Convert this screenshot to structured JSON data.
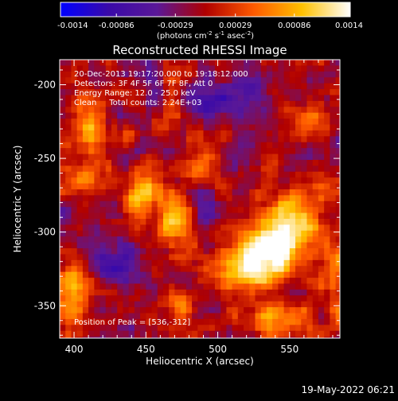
{
  "chart_data": {
    "type": "heatmap",
    "title": "Reconstructed RHESSI Image",
    "xlabel": "Heliocentric X (arcsec)",
    "ylabel": "Heliocentric Y (arcsec)",
    "xlim": [
      390,
      585
    ],
    "ylim": [
      -372,
      -183
    ],
    "x_ticks": [
      400,
      450,
      500,
      550
    ],
    "y_ticks": [
      -200,
      -250,
      -300,
      -350
    ],
    "colorbar": {
      "range": [
        -0.0014,
        0.0014
      ],
      "ticks": [
        "-0.0014",
        "-0.00086",
        "-0.00029",
        "0.00029",
        "0.00086",
        "0.0014"
      ],
      "tick_values": [
        -0.0014,
        -0.00086,
        -0.00029,
        0.00029,
        0.00086,
        0.0014
      ],
      "unit_parts": [
        "(photons cm",
        "-2",
        " s",
        "-1",
        " asec",
        "-2",
        ")"
      ],
      "colormap": [
        "#0000ff",
        "#3a0aa8",
        "#5a1898",
        "#b00000",
        "#ff5a00",
        "#ffc000",
        "#ffffff"
      ]
    },
    "annotations": [
      "20-Dec-2013 19:17:20.000 to 19:18:12.000",
      "Detectors: 3F 4F 5F 6F 7F 8F, Att 0",
      "Energy Range: 12.0 - 25.0 keV",
      "Clean     Total counts: 2.24E+03",
      "Position of Peak = [536,-312]"
    ],
    "peak": [
      536,
      -312
    ],
    "sources": [
      {
        "x": 448,
        "y": -275,
        "amp": 0.00115,
        "sx": 10,
        "sy": 11
      },
      {
        "x": 470,
        "y": -295,
        "amp": 0.0009,
        "sx": 9,
        "sy": 12
      },
      {
        "x": 536,
        "y": -312,
        "amp": 0.0014,
        "sx": 14,
        "sy": 13
      },
      {
        "x": 555,
        "y": -292,
        "amp": 0.001,
        "sx": 14,
        "sy": 18
      },
      {
        "x": 518,
        "y": -325,
        "amp": 0.0009,
        "sx": 16,
        "sy": 12
      },
      {
        "x": 410,
        "y": -225,
        "amp": 0.00075,
        "sx": 10,
        "sy": 12
      },
      {
        "x": 405,
        "y": -260,
        "amp": 0.0007,
        "sx": 10,
        "sy": 10
      },
      {
        "x": 400,
        "y": -340,
        "amp": 0.0008,
        "sx": 9,
        "sy": 18
      },
      {
        "x": 540,
        "y": -360,
        "amp": 0.0008,
        "sx": 18,
        "sy": 8
      },
      {
        "x": 470,
        "y": -215,
        "amp": 0.00055,
        "sx": 6,
        "sy": 12
      },
      {
        "x": 488,
        "y": -255,
        "amp": 0.00055,
        "sx": 7,
        "sy": 12
      },
      {
        "x": 565,
        "y": -225,
        "amp": 0.0006,
        "sx": 7,
        "sy": 10
      },
      {
        "x": 583,
        "y": -330,
        "amp": 0.0007,
        "sx": 6,
        "sy": 14
      },
      {
        "x": 470,
        "y": -350,
        "amp": 0.0005,
        "sx": 10,
        "sy": 8
      },
      {
        "x": 500,
        "y": -212,
        "amp": -0.0009,
        "sx": 12,
        "sy": 9
      },
      {
        "x": 522,
        "y": -200,
        "amp": -0.0007,
        "sx": 8,
        "sy": 7
      },
      {
        "x": 430,
        "y": -320,
        "amp": -0.0007,
        "sx": 10,
        "sy": 10
      },
      {
        "x": 495,
        "y": -292,
        "amp": -0.0005,
        "sx": 6,
        "sy": 8
      }
    ]
  },
  "footer": {
    "timestamp": "19-May-2022 06:21"
  }
}
